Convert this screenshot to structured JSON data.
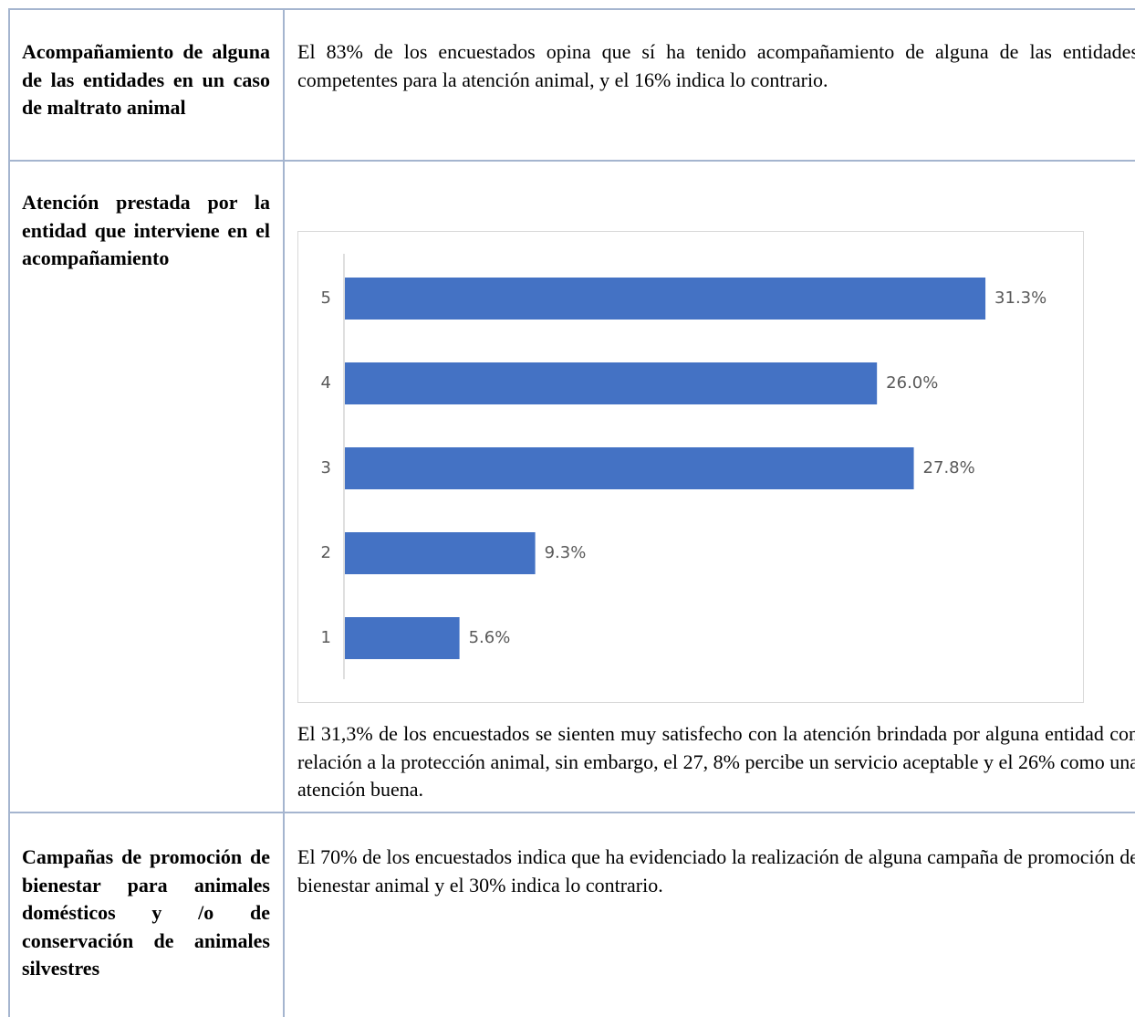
{
  "table": {
    "rows": [
      {
        "label": "Acompañamiento de alguna de las entidades en un caso de maltrato animal",
        "text": "El 83% de los encuestados opina que sí ha tenido acompañamiento de alguna de las entidades competentes para la atención animal, y el 16% indica lo contrario."
      },
      {
        "label": "Atención prestada por la entidad que interviene en el acompañamiento",
        "chart_data": {
          "type": "bar",
          "orientation": "horizontal",
          "color": "#4472c4",
          "categories": [
            "1",
            "2",
            "3",
            "4",
            "5"
          ],
          "values": [
            5.6,
            9.3,
            27.8,
            26.0,
            31.3
          ],
          "value_labels": [
            "5.6%",
            "9.3%",
            "27.8%",
            "26.0%",
            "31.3%"
          ]
        },
        "text": "El 31,3% de los encuestados se sienten muy satisfecho con la atención brindada por alguna entidad con relación a la protección animal, sin embargo, el 27, 8% percibe un servicio aceptable y el 26% como una atención buena."
      },
      {
        "label": "Campañas de promoción de bienestar para animales domésticos y /o de conservación de animales silvestres",
        "text": "El 70% de los encuestados indica que ha evidenciado la realización de alguna campaña de promoción de bienestar animal y el 30% indica lo contrario."
      }
    ]
  }
}
